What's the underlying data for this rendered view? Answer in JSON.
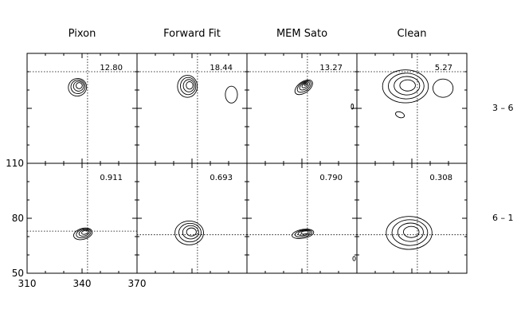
{
  "chart_data": {
    "type": "contour",
    "columns": [
      "Pixon",
      "Forward Fit",
      "MEM Sato",
      "Clean"
    ],
    "rows": [
      {
        "label": "3 – 6",
        "panels": [
          {
            "value": "12.80",
            "crosshair": [
              343,
              100
            ]
          },
          {
            "value": "18.44",
            "crosshair": [
              343,
              100
            ]
          },
          {
            "value": "13.27",
            "crosshair": [
              343,
              100
            ]
          },
          {
            "value": "5.27",
            "crosshair": [
              343,
              100
            ]
          }
        ]
      },
      {
        "label": "6 – 1",
        "panels": [
          {
            "value": "0.911",
            "crosshair": [
              343,
              73
            ]
          },
          {
            "value": "0.693",
            "crosshair": [
              343,
              71
            ]
          },
          {
            "value": "0.790",
            "crosshair": [
              343,
              71
            ]
          },
          {
            "value": "0.308",
            "crosshair": [
              343,
              71
            ]
          }
        ]
      }
    ],
    "x_ticks": [
      310,
      340,
      370
    ],
    "y_ticks": [
      50,
      80,
      110
    ],
    "xlim": [
      310,
      370
    ],
    "ylim": [
      50,
      110
    ],
    "sources": [
      {
        "row": 0,
        "col": 0,
        "x": 337.5,
        "y": 91.5,
        "sx": 5.0,
        "sy": 4.8,
        "tilt": 20,
        "levels": 4
      },
      {
        "row": 0,
        "col": 1,
        "x": 337.5,
        "y": 92.0,
        "sx": 5.4,
        "sy": 6.0,
        "tilt": 0,
        "levels": 4
      },
      {
        "row": 0,
        "col": 1,
        "x": 361.5,
        "y": 87.5,
        "sx": 3.3,
        "sy": 4.6,
        "tilt": 0,
        "levels": 1
      },
      {
        "row": 0,
        "col": 2,
        "x": 341.0,
        "y": 91.5,
        "sx": 5.5,
        "sy": 3.0,
        "tilt": 35,
        "levels": 5
      },
      {
        "row": 0,
        "col": 2,
        "x": 367.5,
        "y": 81.0,
        "sx": 0.6,
        "sy": 1.4,
        "tilt": 0,
        "levels": 1
      },
      {
        "row": 0,
        "col": 3,
        "x": 336.5,
        "y": 92.0,
        "sx": 12.5,
        "sy": 9.0,
        "tilt": 0,
        "levels": 4
      },
      {
        "row": 0,
        "col": 3,
        "x": 357.0,
        "y": 91.0,
        "sx": 5.5,
        "sy": 5.0,
        "tilt": 0,
        "levels": 1
      },
      {
        "row": 0,
        "col": 3,
        "x": 333.5,
        "y": 76.5,
        "sx": 2.5,
        "sy": 1.5,
        "tilt": -20,
        "levels": 1
      },
      {
        "row": 1,
        "col": 0,
        "x": 340.5,
        "y": 71.5,
        "sx": 5.2,
        "sy": 3.0,
        "tilt": 15,
        "levels": 4
      },
      {
        "row": 1,
        "col": 1,
        "x": 338.5,
        "y": 72.0,
        "sx": 7.8,
        "sy": 6.5,
        "tilt": 0,
        "levels": 4
      },
      {
        "row": 1,
        "col": 2,
        "x": 340.5,
        "y": 71.5,
        "sx": 6.0,
        "sy": 2.4,
        "tilt": 10,
        "levels": 4
      },
      {
        "row": 1,
        "col": 2,
        "x": 368.5,
        "y": 58.0,
        "sx": 0.7,
        "sy": 1.2,
        "tilt": 0,
        "levels": 1
      },
      {
        "row": 1,
        "col": 3,
        "x": 338.5,
        "y": 72.0,
        "sx": 12.5,
        "sy": 9.0,
        "tilt": 0,
        "levels": 4
      }
    ]
  }
}
